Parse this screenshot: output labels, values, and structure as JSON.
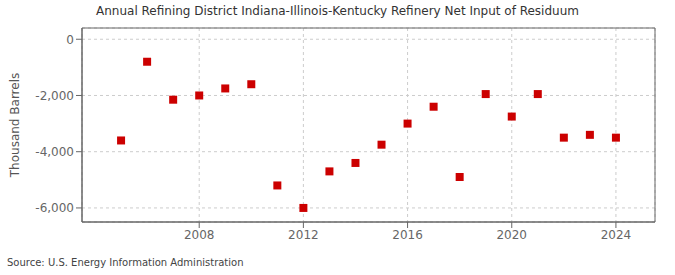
{
  "chart_data": {
    "type": "scatter",
    "title": "Annual Refining District Indiana-Illinois-Kentucky Refinery Net Input of Residuum",
    "ylabel": "Thousand Barrels",
    "annotation": "Source: U.S. Energy Information Administration",
    "x": [
      2005,
      2006,
      2007,
      2008,
      2009,
      2010,
      2011,
      2012,
      2013,
      2014,
      2015,
      2016,
      2017,
      2018,
      2019,
      2020,
      2021,
      2022,
      2023,
      2024
    ],
    "values": [
      -3600,
      -800,
      -2150,
      -2000,
      -1750,
      -1600,
      -5200,
      -6000,
      -4700,
      -4400,
      -3750,
      -3000,
      -2400,
      -4900,
      -1950,
      -2750,
      -1950,
      -3500,
      -3400,
      -3500
    ],
    "color": "#cc0000",
    "marker": "square",
    "xlim": [
      2003.5,
      2025.5
    ],
    "ylim": [
      -6500,
      400
    ],
    "xticks": [
      2008,
      2012,
      2016,
      2020,
      2024
    ],
    "yticks": [
      0,
      {
        "value": -2000,
        "label": "-2,000"
      },
      {
        "value": -4000,
        "label": "-4,000"
      },
      {
        "value": -6000,
        "label": "-6,000"
      }
    ],
    "grid": true
  }
}
